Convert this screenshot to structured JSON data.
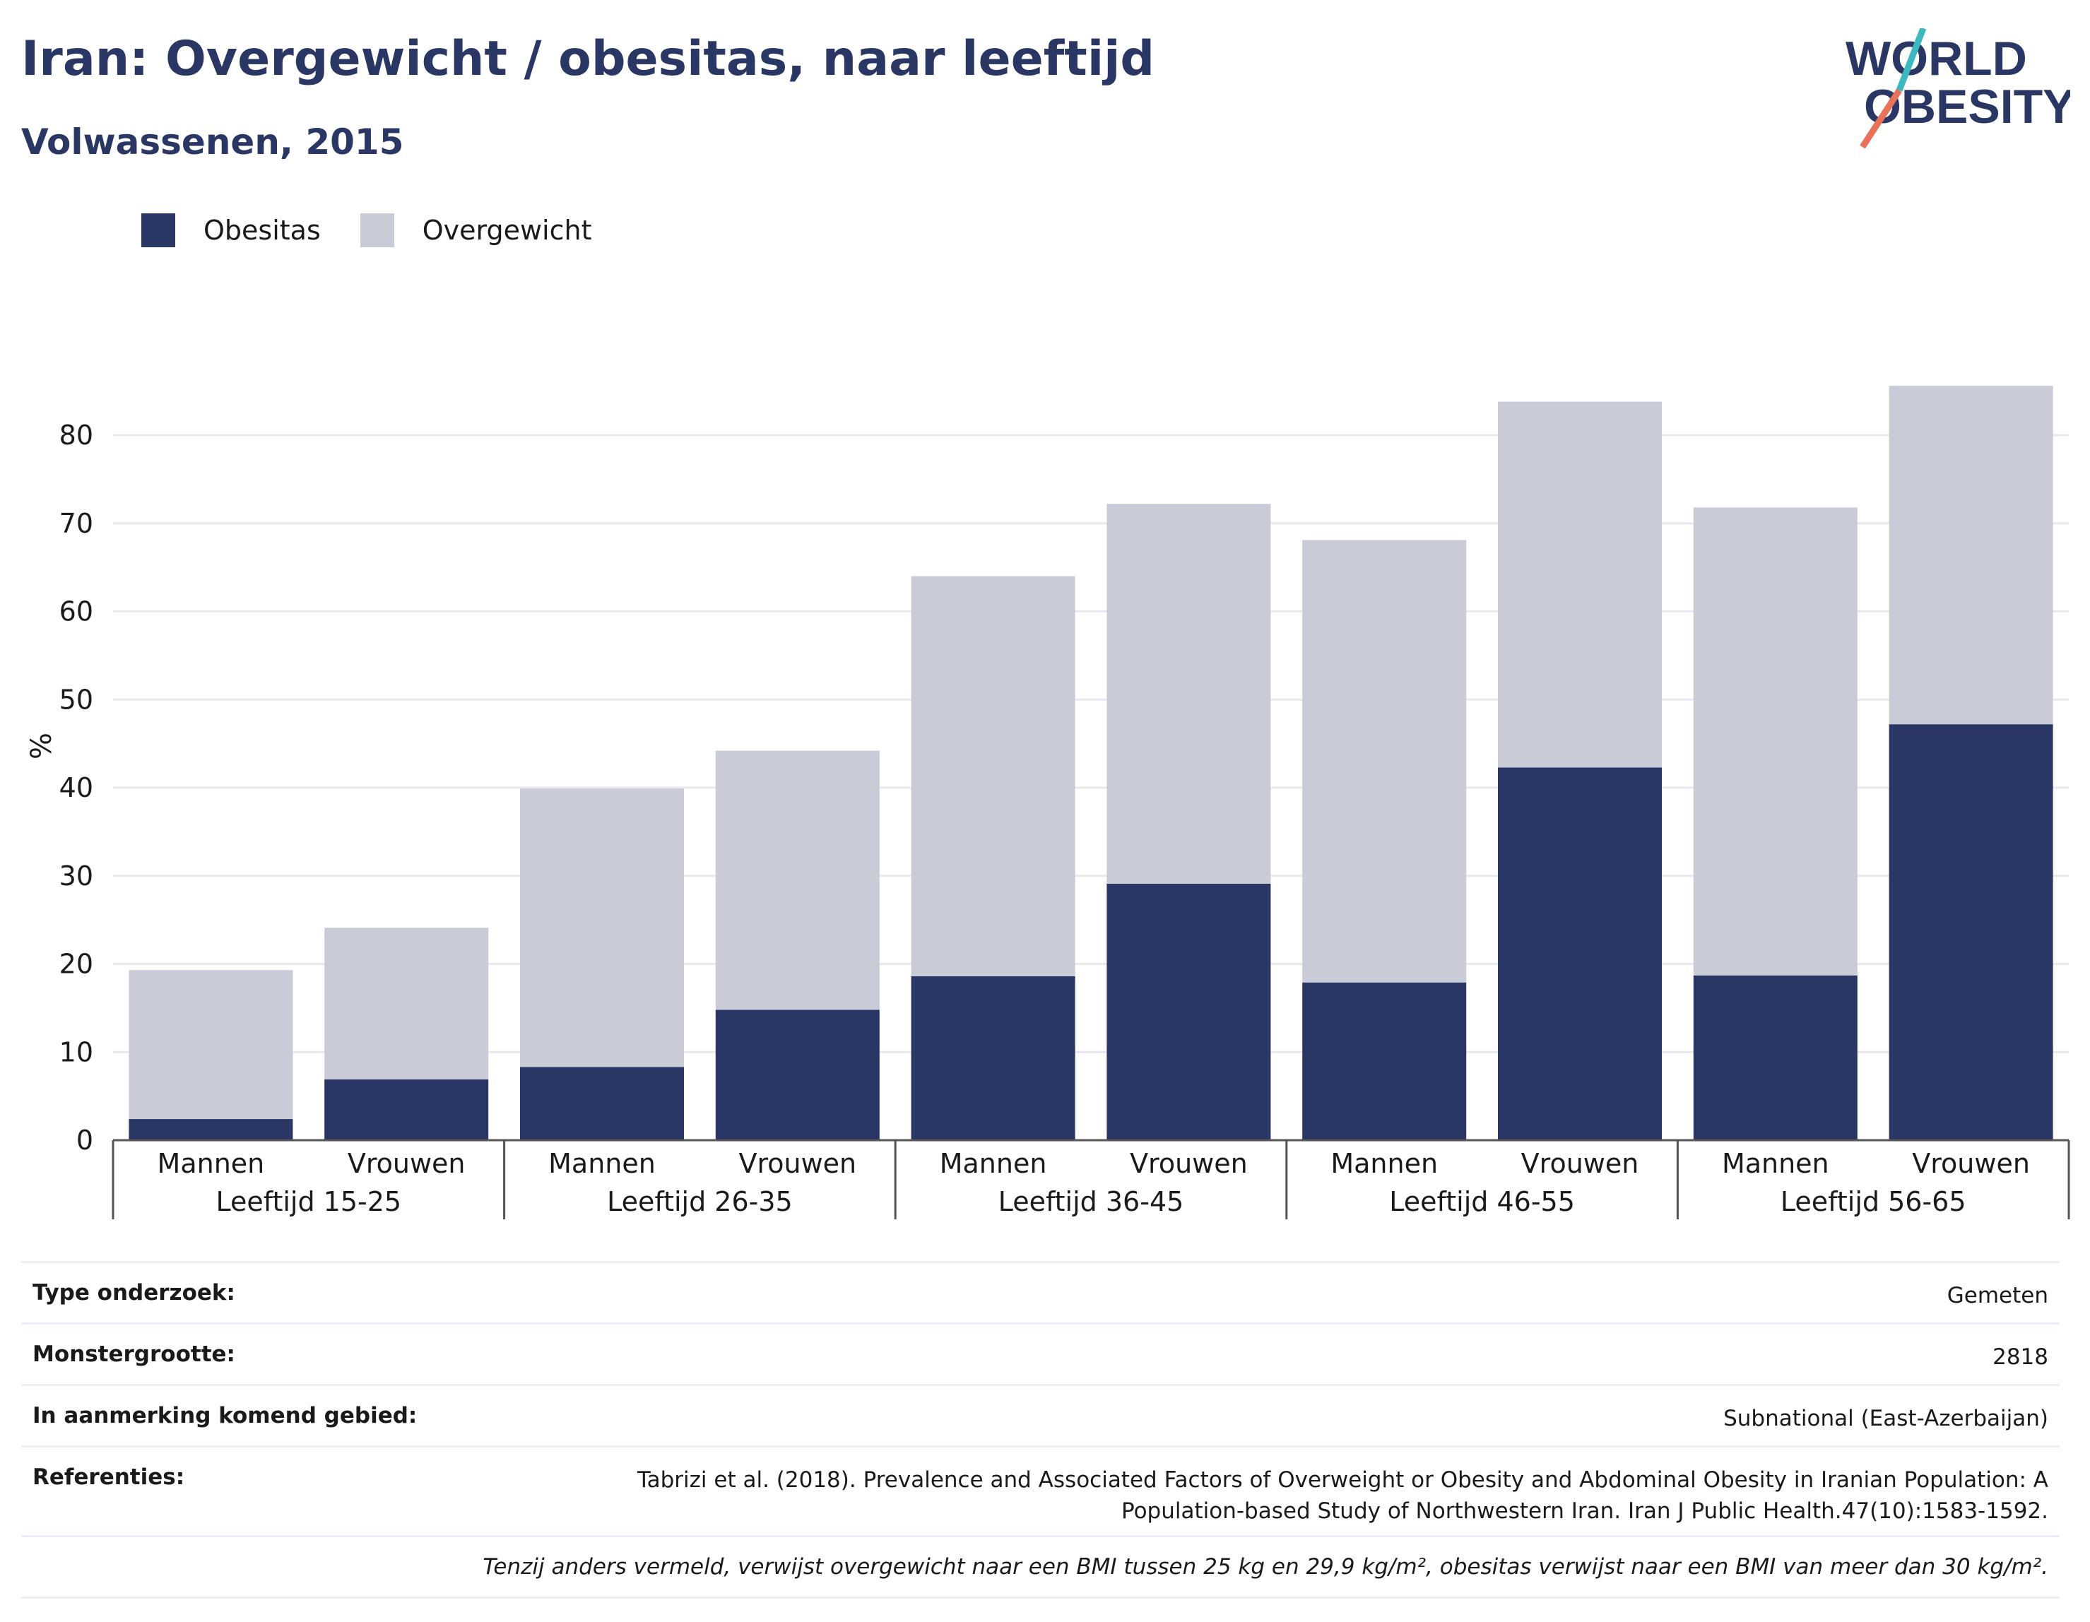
{
  "header": {
    "title": "Iran: Overgewicht / obesitas, naar leeftijd",
    "subtitle": "Volwassenen, 2015"
  },
  "logo": {
    "line1": "WORLD",
    "line2": "OBESITY",
    "accent_teal": "#3bb8c0",
    "accent_coral": "#e8725a"
  },
  "colors": {
    "obesitas": "#2a3663",
    "overgewicht": "#c9cbd7",
    "grid": "#e8e8ee",
    "axis": "#555555"
  },
  "chart_data": {
    "type": "bar",
    "stacked": true,
    "ylabel": "%",
    "ylim": [
      0,
      90
    ],
    "yticks": [
      0,
      10,
      20,
      30,
      40,
      50,
      60,
      70,
      80
    ],
    "groups": [
      "Leeftijd 15-25",
      "Leeftijd 26-35",
      "Leeftijd 36-45",
      "Leeftijd 46-55",
      "Leeftijd 56-65"
    ],
    "sub_categories": [
      "Mannen",
      "Vrouwen"
    ],
    "series": [
      {
        "name": "Obesitas",
        "color": "#2a3663",
        "values": [
          2.4,
          6.9,
          8.3,
          14.8,
          18.6,
          29.1,
          17.9,
          42.3,
          18.7,
          47.2
        ]
      },
      {
        "name": "Overgewicht",
        "color": "#c9cbd7",
        "values": [
          16.9,
          17.2,
          31.6,
          29.4,
          45.4,
          43.1,
          50.2,
          41.5,
          53.1,
          38.4
        ]
      }
    ],
    "legend_position": "top-left",
    "grid": true
  },
  "meta": {
    "rows": [
      {
        "key": "Type onderzoek:",
        "value": "Gemeten"
      },
      {
        "key": "Monstergrootte:",
        "value": "2818"
      },
      {
        "key": "In aanmerking komend gebied:",
        "value": "Subnational (East-Azerbaijan)"
      },
      {
        "key": "Referenties:",
        "value": "Tabrizi et al. (2018). Prevalence and Associated Factors of Overweight or Obesity and Abdominal Obesity in Iranian Population: A",
        "value2": "Population-based Study of Northwestern Iran. Iran J Public Health.47(10):1583-1592."
      }
    ],
    "note": "Tenzij anders vermeld, verwijst overgewicht naar een BMI tussen 25 kg en 29,9 kg/m², obesitas verwijst naar een BMI van meer dan 30 kg/m²."
  }
}
